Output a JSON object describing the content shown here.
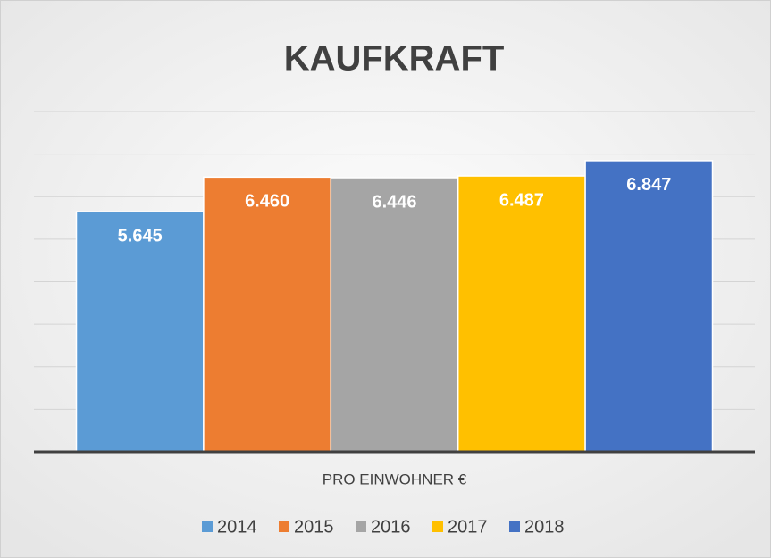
{
  "chart_data": {
    "type": "bar",
    "title": "KAUFKRAFT",
    "categories": [
      "PRO EINWOHNER €"
    ],
    "series": [
      {
        "name": "2014",
        "color": "#5b9bd5",
        "values": [
          5645
        ],
        "value_labels": [
          "5.645"
        ]
      },
      {
        "name": "2015",
        "color": "#ed7d31",
        "values": [
          6460
        ],
        "value_labels": [
          "6.460"
        ]
      },
      {
        "name": "2016",
        "color": "#a5a5a5",
        "values": [
          6446
        ],
        "value_labels": [
          "6.446"
        ]
      },
      {
        "name": "2017",
        "color": "#ffc000",
        "values": [
          6487
        ],
        "value_labels": [
          "6.487"
        ]
      },
      {
        "name": "2018",
        "color": "#4472c4",
        "values": [
          6847
        ],
        "value_labels": [
          "6.847"
        ]
      }
    ],
    "ylim": [
      0,
      8000
    ],
    "yticks": [
      0,
      1000,
      2000,
      3000,
      4000,
      5000,
      6000,
      7000,
      8000
    ],
    "grid": true,
    "legend": "bottom"
  }
}
